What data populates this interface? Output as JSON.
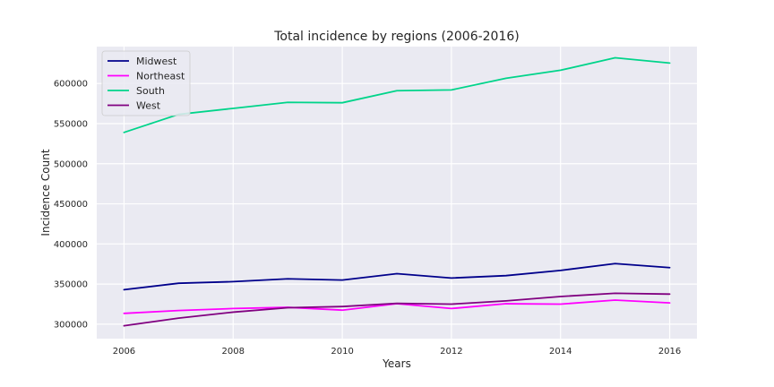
{
  "chart_data": {
    "type": "line",
    "title": "Total incidence by regions (2006-2016)",
    "xlabel": "Years",
    "ylabel": "Incidence Count",
    "x": [
      2006,
      2007,
      2008,
      2009,
      2010,
      2011,
      2012,
      2013,
      2014,
      2015,
      2016
    ],
    "xlim": [
      2005.5,
      2016.5
    ],
    "ylim": [
      282000,
      646000
    ],
    "x_ticks": [
      2006,
      2008,
      2010,
      2012,
      2014,
      2016
    ],
    "y_ticks": [
      300000,
      350000,
      400000,
      450000,
      500000,
      550000,
      600000
    ],
    "grid": true,
    "legend_position": "top-left",
    "background_color": "#eaeaf2",
    "grid_color": "#ffffff",
    "series": [
      {
        "name": "Midwest",
        "color": "#00008b",
        "values": [
          343000,
          351000,
          353000,
          356500,
          355000,
          363000,
          357500,
          360500,
          367000,
          375500,
          370500
        ]
      },
      {
        "name": "Northeast",
        "color": "#ff00ff",
        "values": [
          313500,
          317000,
          319500,
          321000,
          317500,
          325500,
          319500,
          325500,
          325000,
          330000,
          326500
        ]
      },
      {
        "name": "South",
        "color": "#00d48a",
        "values": [
          539000,
          561500,
          569000,
          576500,
          576000,
          591000,
          592000,
          606500,
          616500,
          632000,
          625500
        ]
      },
      {
        "name": "West",
        "color": "#800080",
        "values": [
          298000,
          307500,
          315000,
          320500,
          322000,
          326000,
          325000,
          329000,
          334500,
          338500,
          337500
        ]
      }
    ]
  }
}
